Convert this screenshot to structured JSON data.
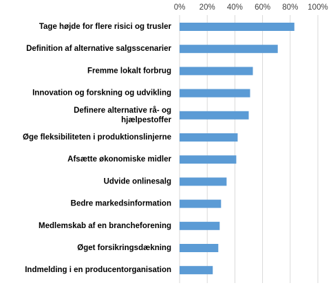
{
  "chart_data": {
    "type": "bar",
    "orientation": "horizontal",
    "title": "",
    "xlabel": "",
    "ylabel": "",
    "xlim": [
      0,
      1
    ],
    "x_ticks": [
      "0%",
      "20%",
      "40%",
      "60%",
      "80%",
      "100%"
    ],
    "x_axis_position": "top",
    "grid": "vertical gridlines",
    "legend": "none",
    "categories": [
      "Tage højde for flere risici og trusler",
      "Definition af alternative salgsscenarier",
      "Fremme lokalt forbrug",
      "Innovation og forskning og udvikling",
      "Definere alternative rå- og hjælpestoffer",
      "Øge fleksibiliteten i produktionslinjerne",
      "Afsætte økonomiske midler",
      "Udvide onlinesalg",
      "Bedre markedsinformation",
      "Medlemskab af en brancheforening",
      "Øget forsikringsdækning",
      "Indmelding i en producentorganisation"
    ],
    "category_lines": [
      [
        "Tage højde for flere risici og trusler"
      ],
      [
        "Definition af alternative salgsscenarier"
      ],
      [
        "Fremme lokalt forbrug"
      ],
      [
        "Innovation og forskning og udvikling"
      ],
      [
        "Definere alternative rå- og",
        "hjælpestoffer"
      ],
      [
        "Øge fleksibiliteten i produktionslinjerne"
      ],
      [
        "Afsætte økonomiske midler"
      ],
      [
        "Udvide onlinesalg"
      ],
      [
        "Bedre markedsinformation"
      ],
      [
        "Medlemskab af en brancheforening"
      ],
      [
        "Øget forsikringsdækning"
      ],
      [
        "Indmelding i en producentorganisation"
      ]
    ],
    "values": [
      0.83,
      0.71,
      0.53,
      0.51,
      0.5,
      0.42,
      0.41,
      0.34,
      0.3,
      0.29,
      0.28,
      0.24
    ],
    "colors": {
      "bar": "#5B9BD5",
      "grid": "#D9D9D9",
      "text": "#000000",
      "tick_text": "#404040"
    }
  }
}
